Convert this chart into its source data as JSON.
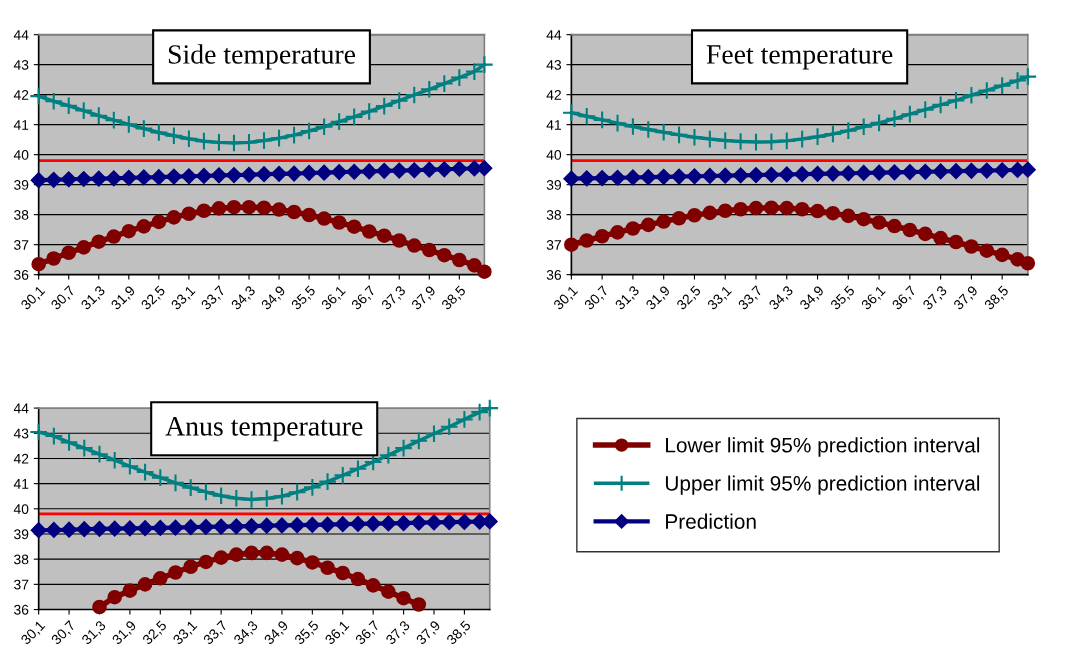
{
  "chart_data": [
    {
      "type": "line",
      "title": "Side temperature",
      "x": [
        30.1,
        30.4,
        30.7,
        31.0,
        31.3,
        31.6,
        31.9,
        32.2,
        32.5,
        32.8,
        33.1,
        33.4,
        33.7,
        34.0,
        34.3,
        34.6,
        34.9,
        35.2,
        35.5,
        35.8,
        36.1,
        36.4,
        36.7,
        37.0,
        37.3,
        37.6,
        37.9,
        38.2,
        38.5,
        38.8,
        39.0
      ],
      "series": [
        {
          "color": "#800000",
          "marker": "circle",
          "values": [
            36.35,
            36.54,
            36.73,
            36.91,
            37.1,
            37.27,
            37.45,
            37.61,
            37.76,
            37.91,
            38.03,
            38.13,
            38.21,
            38.25,
            38.25,
            38.23,
            38.17,
            38.09,
            37.99,
            37.87,
            37.74,
            37.6,
            37.44,
            37.3,
            37.14,
            36.97,
            36.82,
            36.65,
            36.49,
            36.31,
            36.1
          ]
        },
        {
          "color": "#008080",
          "marker": "cross",
          "values": [
            41.95,
            41.78,
            41.63,
            41.47,
            41.3,
            41.15,
            41.01,
            40.87,
            40.74,
            40.63,
            40.53,
            40.45,
            40.41,
            40.39,
            40.41,
            40.47,
            40.55,
            40.65,
            40.79,
            40.93,
            41.1,
            41.26,
            41.44,
            41.62,
            41.8,
            41.99,
            42.18,
            42.37,
            42.57,
            42.77,
            43.0
          ]
        },
        {
          "color": "#000080",
          "marker": "diamond",
          "values": [
            39.15,
            39.16,
            39.18,
            39.19,
            39.2,
            39.21,
            39.23,
            39.24,
            39.25,
            39.27,
            39.28,
            39.29,
            39.31,
            39.32,
            39.33,
            39.35,
            39.36,
            39.37,
            39.39,
            39.4,
            39.42,
            39.43,
            39.44,
            39.46,
            39.47,
            39.48,
            39.5,
            39.51,
            39.53,
            39.54,
            39.55
          ]
        }
      ],
      "ref_lines": [
        {
          "axis": "y",
          "value": 39.8,
          "color": "#ff0000"
        }
      ],
      "xlim": [
        30.1,
        39.0
      ],
      "ylim": [
        36,
        44
      ],
      "yticks": [
        36,
        37,
        38,
        39,
        40,
        41,
        42,
        43,
        44
      ],
      "xticks": [
        {
          "value": 30.1,
          "label": "30,1"
        },
        {
          "value": 30.7,
          "label": "30,7"
        },
        {
          "value": 31.3,
          "label": "31,3"
        },
        {
          "value": 31.9,
          "label": "31,9"
        },
        {
          "value": 32.5,
          "label": "32,5"
        },
        {
          "value": 33.1,
          "label": "33,1"
        },
        {
          "value": 33.7,
          "label": "33,7"
        },
        {
          "value": 34.3,
          "label": "34,3"
        },
        {
          "value": 34.9,
          "label": "34,9"
        },
        {
          "value": 35.5,
          "label": "35,5"
        },
        {
          "value": 36.1,
          "label": "36,1"
        },
        {
          "value": 36.7,
          "label": "36,7"
        },
        {
          "value": 37.3,
          "label": "37,3"
        },
        {
          "value": 37.9,
          "label": "37,9"
        },
        {
          "value": 38.5,
          "label": "38,5"
        }
      ],
      "grid": "y",
      "legend": false
    },
    {
      "type": "line",
      "title": "Feet temperature",
      "x": [
        30.1,
        30.4,
        30.7,
        31.0,
        31.3,
        31.6,
        31.9,
        32.2,
        32.5,
        32.8,
        33.1,
        33.4,
        33.7,
        34.0,
        34.3,
        34.6,
        34.9,
        35.2,
        35.5,
        35.8,
        36.1,
        36.4,
        36.7,
        37.0,
        37.3,
        37.6,
        37.9,
        38.2,
        38.5,
        38.8,
        39.0
      ],
      "series": [
        {
          "color": "#800000",
          "marker": "circle",
          "values": [
            37.0,
            37.14,
            37.28,
            37.41,
            37.54,
            37.66,
            37.77,
            37.88,
            37.98,
            38.06,
            38.13,
            38.18,
            38.22,
            38.23,
            38.22,
            38.18,
            38.12,
            38.05,
            37.96,
            37.85,
            37.74,
            37.62,
            37.49,
            37.36,
            37.22,
            37.09,
            36.94,
            36.8,
            36.66,
            36.51,
            36.38
          ]
        },
        {
          "color": "#008080",
          "marker": "cross",
          "values": [
            41.4,
            41.28,
            41.16,
            41.05,
            40.94,
            40.84,
            40.75,
            40.66,
            40.58,
            40.52,
            40.47,
            40.44,
            40.42,
            40.43,
            40.46,
            40.52,
            40.6,
            40.69,
            40.8,
            40.93,
            41.06,
            41.2,
            41.35,
            41.5,
            41.66,
            41.81,
            41.98,
            42.14,
            42.3,
            42.47,
            42.6
          ]
        },
        {
          "color": "#000080",
          "marker": "diamond",
          "values": [
            39.2,
            39.21,
            39.22,
            39.23,
            39.24,
            39.25,
            39.26,
            39.27,
            39.28,
            39.29,
            39.3,
            39.31,
            39.32,
            39.33,
            39.34,
            39.35,
            39.36,
            39.37,
            39.38,
            39.39,
            39.4,
            39.41,
            39.42,
            39.43,
            39.44,
            39.45,
            39.46,
            39.47,
            39.48,
            39.49,
            39.5
          ]
        }
      ],
      "ref_lines": [
        {
          "axis": "y",
          "value": 39.8,
          "color": "#ff0000"
        }
      ],
      "xlim": [
        30.1,
        39.0
      ],
      "ylim": [
        36,
        44
      ],
      "yticks": [
        36,
        37,
        38,
        39,
        40,
        41,
        42,
        43,
        44
      ],
      "xticks": [
        {
          "value": 30.1,
          "label": "30,1"
        },
        {
          "value": 30.7,
          "label": "30,7"
        },
        {
          "value": 31.3,
          "label": "31,3"
        },
        {
          "value": 31.9,
          "label": "31,9"
        },
        {
          "value": 32.5,
          "label": "32,5"
        },
        {
          "value": 33.1,
          "label": "33,1"
        },
        {
          "value": 33.7,
          "label": "33,7"
        },
        {
          "value": 34.3,
          "label": "34,3"
        },
        {
          "value": 34.9,
          "label": "34,9"
        },
        {
          "value": 35.5,
          "label": "35,5"
        },
        {
          "value": 36.1,
          "label": "36,1"
        },
        {
          "value": 36.7,
          "label": "36,7"
        },
        {
          "value": 37.3,
          "label": "37,3"
        },
        {
          "value": 37.9,
          "label": "37,9"
        },
        {
          "value": 38.5,
          "label": "38,5"
        }
      ],
      "grid": "y",
      "legend": false
    },
    {
      "type": "line",
      "title": "Anus temperature",
      "x": [
        30.1,
        30.4,
        30.7,
        31.0,
        31.3,
        31.6,
        31.9,
        32.2,
        32.5,
        32.8,
        33.1,
        33.4,
        33.7,
        34.0,
        34.3,
        34.6,
        34.9,
        35.2,
        35.5,
        35.8,
        36.1,
        36.4,
        36.7,
        37.0,
        37.3,
        37.6,
        37.9,
        38.2,
        38.5,
        38.8,
        39.0
      ],
      "series": [
        {
          "name": "Lower limit 95% prediction interval",
          "color": "#800000",
          "marker": "circle",
          "values": [
            null,
            null,
            null,
            null,
            36.1,
            36.49,
            36.75,
            37.0,
            37.24,
            37.47,
            37.7,
            37.89,
            38.06,
            38.18,
            38.25,
            38.25,
            38.18,
            38.04,
            37.87,
            37.66,
            37.45,
            37.21,
            36.96,
            36.71,
            36.45,
            36.2,
            null,
            null,
            null,
            null,
            null
          ]
        },
        {
          "name": "Upper limit 95% prediction interval",
          "color": "#008080",
          "marker": "cross",
          "values": [
            43.05,
            42.89,
            42.64,
            42.41,
            42.17,
            41.93,
            41.69,
            41.46,
            41.24,
            41.03,
            40.84,
            40.67,
            40.52,
            40.42,
            40.37,
            40.41,
            40.5,
            40.66,
            40.85,
            41.08,
            41.33,
            41.59,
            41.86,
            42.13,
            42.41,
            42.7,
            42.98,
            43.26,
            43.55,
            43.84,
            44.0
          ]
        },
        {
          "name": "Prediction",
          "color": "#000080",
          "marker": "diamond",
          "values": [
            39.15,
            39.16,
            39.17,
            39.19,
            39.2,
            39.21,
            39.22,
            39.23,
            39.24,
            39.25,
            39.27,
            39.28,
            39.29,
            39.3,
            39.31,
            39.33,
            39.34,
            39.35,
            39.36,
            39.37,
            39.39,
            39.4,
            39.41,
            39.42,
            39.43,
            39.45,
            39.46,
            39.47,
            39.48,
            39.49,
            39.5
          ]
        }
      ],
      "ref_lines": [
        {
          "axis": "y",
          "value": 39.8,
          "color": "#ff0000"
        }
      ],
      "xlim": [
        30.1,
        39.0
      ],
      "ylim": [
        36,
        44
      ],
      "yticks": [
        36,
        37,
        38,
        39,
        40,
        41,
        42,
        43,
        44
      ],
      "xticks": [
        {
          "value": 30.1,
          "label": "30,1"
        },
        {
          "value": 30.7,
          "label": "30,7"
        },
        {
          "value": 31.3,
          "label": "31,3"
        },
        {
          "value": 31.9,
          "label": "31,9"
        },
        {
          "value": 32.5,
          "label": "32,5"
        },
        {
          "value": 33.1,
          "label": "33,1"
        },
        {
          "value": 33.7,
          "label": "33,7"
        },
        {
          "value": 34.3,
          "label": "34,3"
        },
        {
          "value": 34.9,
          "label": "34,9"
        },
        {
          "value": 35.5,
          "label": "35,5"
        },
        {
          "value": 36.1,
          "label": "36,1"
        },
        {
          "value": 36.7,
          "label": "36,7"
        },
        {
          "value": 37.3,
          "label": "37,3"
        },
        {
          "value": 37.9,
          "label": "37,9"
        },
        {
          "value": 38.5,
          "label": "38,5"
        }
      ],
      "grid": "y",
      "legend": "right"
    }
  ]
}
